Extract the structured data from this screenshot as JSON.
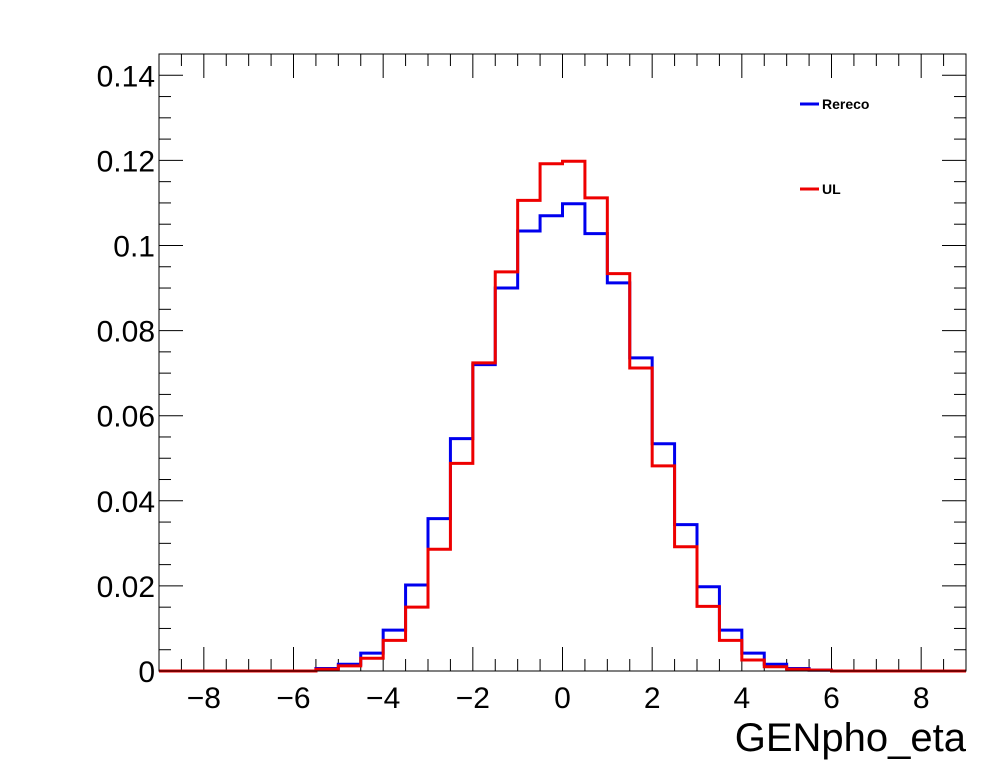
{
  "chart_data": {
    "type": "histogram",
    "xlabel": "GENpho_eta",
    "ylabel": "",
    "xlim": [
      -9,
      9
    ],
    "ylim": [
      0,
      0.145
    ],
    "x_ticks": [
      -8,
      -6,
      -4,
      -2,
      0,
      2,
      4,
      6,
      8
    ],
    "x_tick_labels": [
      "−8",
      "−6",
      "−4",
      "−2",
      "0",
      "2",
      "4",
      "6",
      "8"
    ],
    "y_ticks": [
      0,
      0.02,
      0.04,
      0.06,
      0.08,
      0.1,
      0.12,
      0.14
    ],
    "y_tick_labels": [
      "0",
      "0.02",
      "0.04",
      "0.06",
      "0.08",
      "0.1",
      "0.12",
      "0.14"
    ],
    "bin_edges": [
      -9.0,
      -8.5,
      -8.0,
      -7.5,
      -7.0,
      -6.5,
      -6.0,
      -5.5,
      -5.0,
      -4.5,
      -4.0,
      -3.5,
      -3.0,
      -2.5,
      -2.0,
      -1.5,
      -1.0,
      -0.5,
      0.0,
      0.5,
      1.0,
      1.5,
      2.0,
      2.5,
      3.0,
      3.5,
      4.0,
      4.5,
      5.0,
      5.5,
      6.0,
      6.5,
      7.0,
      7.5,
      8.0,
      8.5,
      9.0
    ],
    "series": [
      {
        "name": "Rereco",
        "color": "#0000ee",
        "values": [
          0,
          0,
          0,
          0,
          0,
          0,
          0,
          0.0006,
          0.0016,
          0.0042,
          0.0096,
          0.0202,
          0.0358,
          0.0546,
          0.072,
          0.09,
          0.1034,
          0.107,
          0.1098,
          0.1028,
          0.0912,
          0.0736,
          0.0534,
          0.0344,
          0.0198,
          0.0096,
          0.0042,
          0.0016,
          0.0006,
          0.0002,
          0,
          0,
          0,
          0,
          0,
          0
        ]
      },
      {
        "name": "UL",
        "color": "#ee0000",
        "values": [
          0,
          0,
          0,
          0,
          0,
          0,
          0,
          0.0004,
          0.0012,
          0.003,
          0.0072,
          0.015,
          0.0286,
          0.0488,
          0.0724,
          0.0938,
          0.1106,
          0.1192,
          0.1198,
          0.1112,
          0.0934,
          0.0712,
          0.0482,
          0.0292,
          0.0152,
          0.0072,
          0.0026,
          0.001,
          0.0004,
          0.0002,
          0,
          0,
          0,
          0,
          0,
          0
        ]
      }
    ],
    "grid": false,
    "legend_position": "top-right",
    "stat_box": false
  }
}
